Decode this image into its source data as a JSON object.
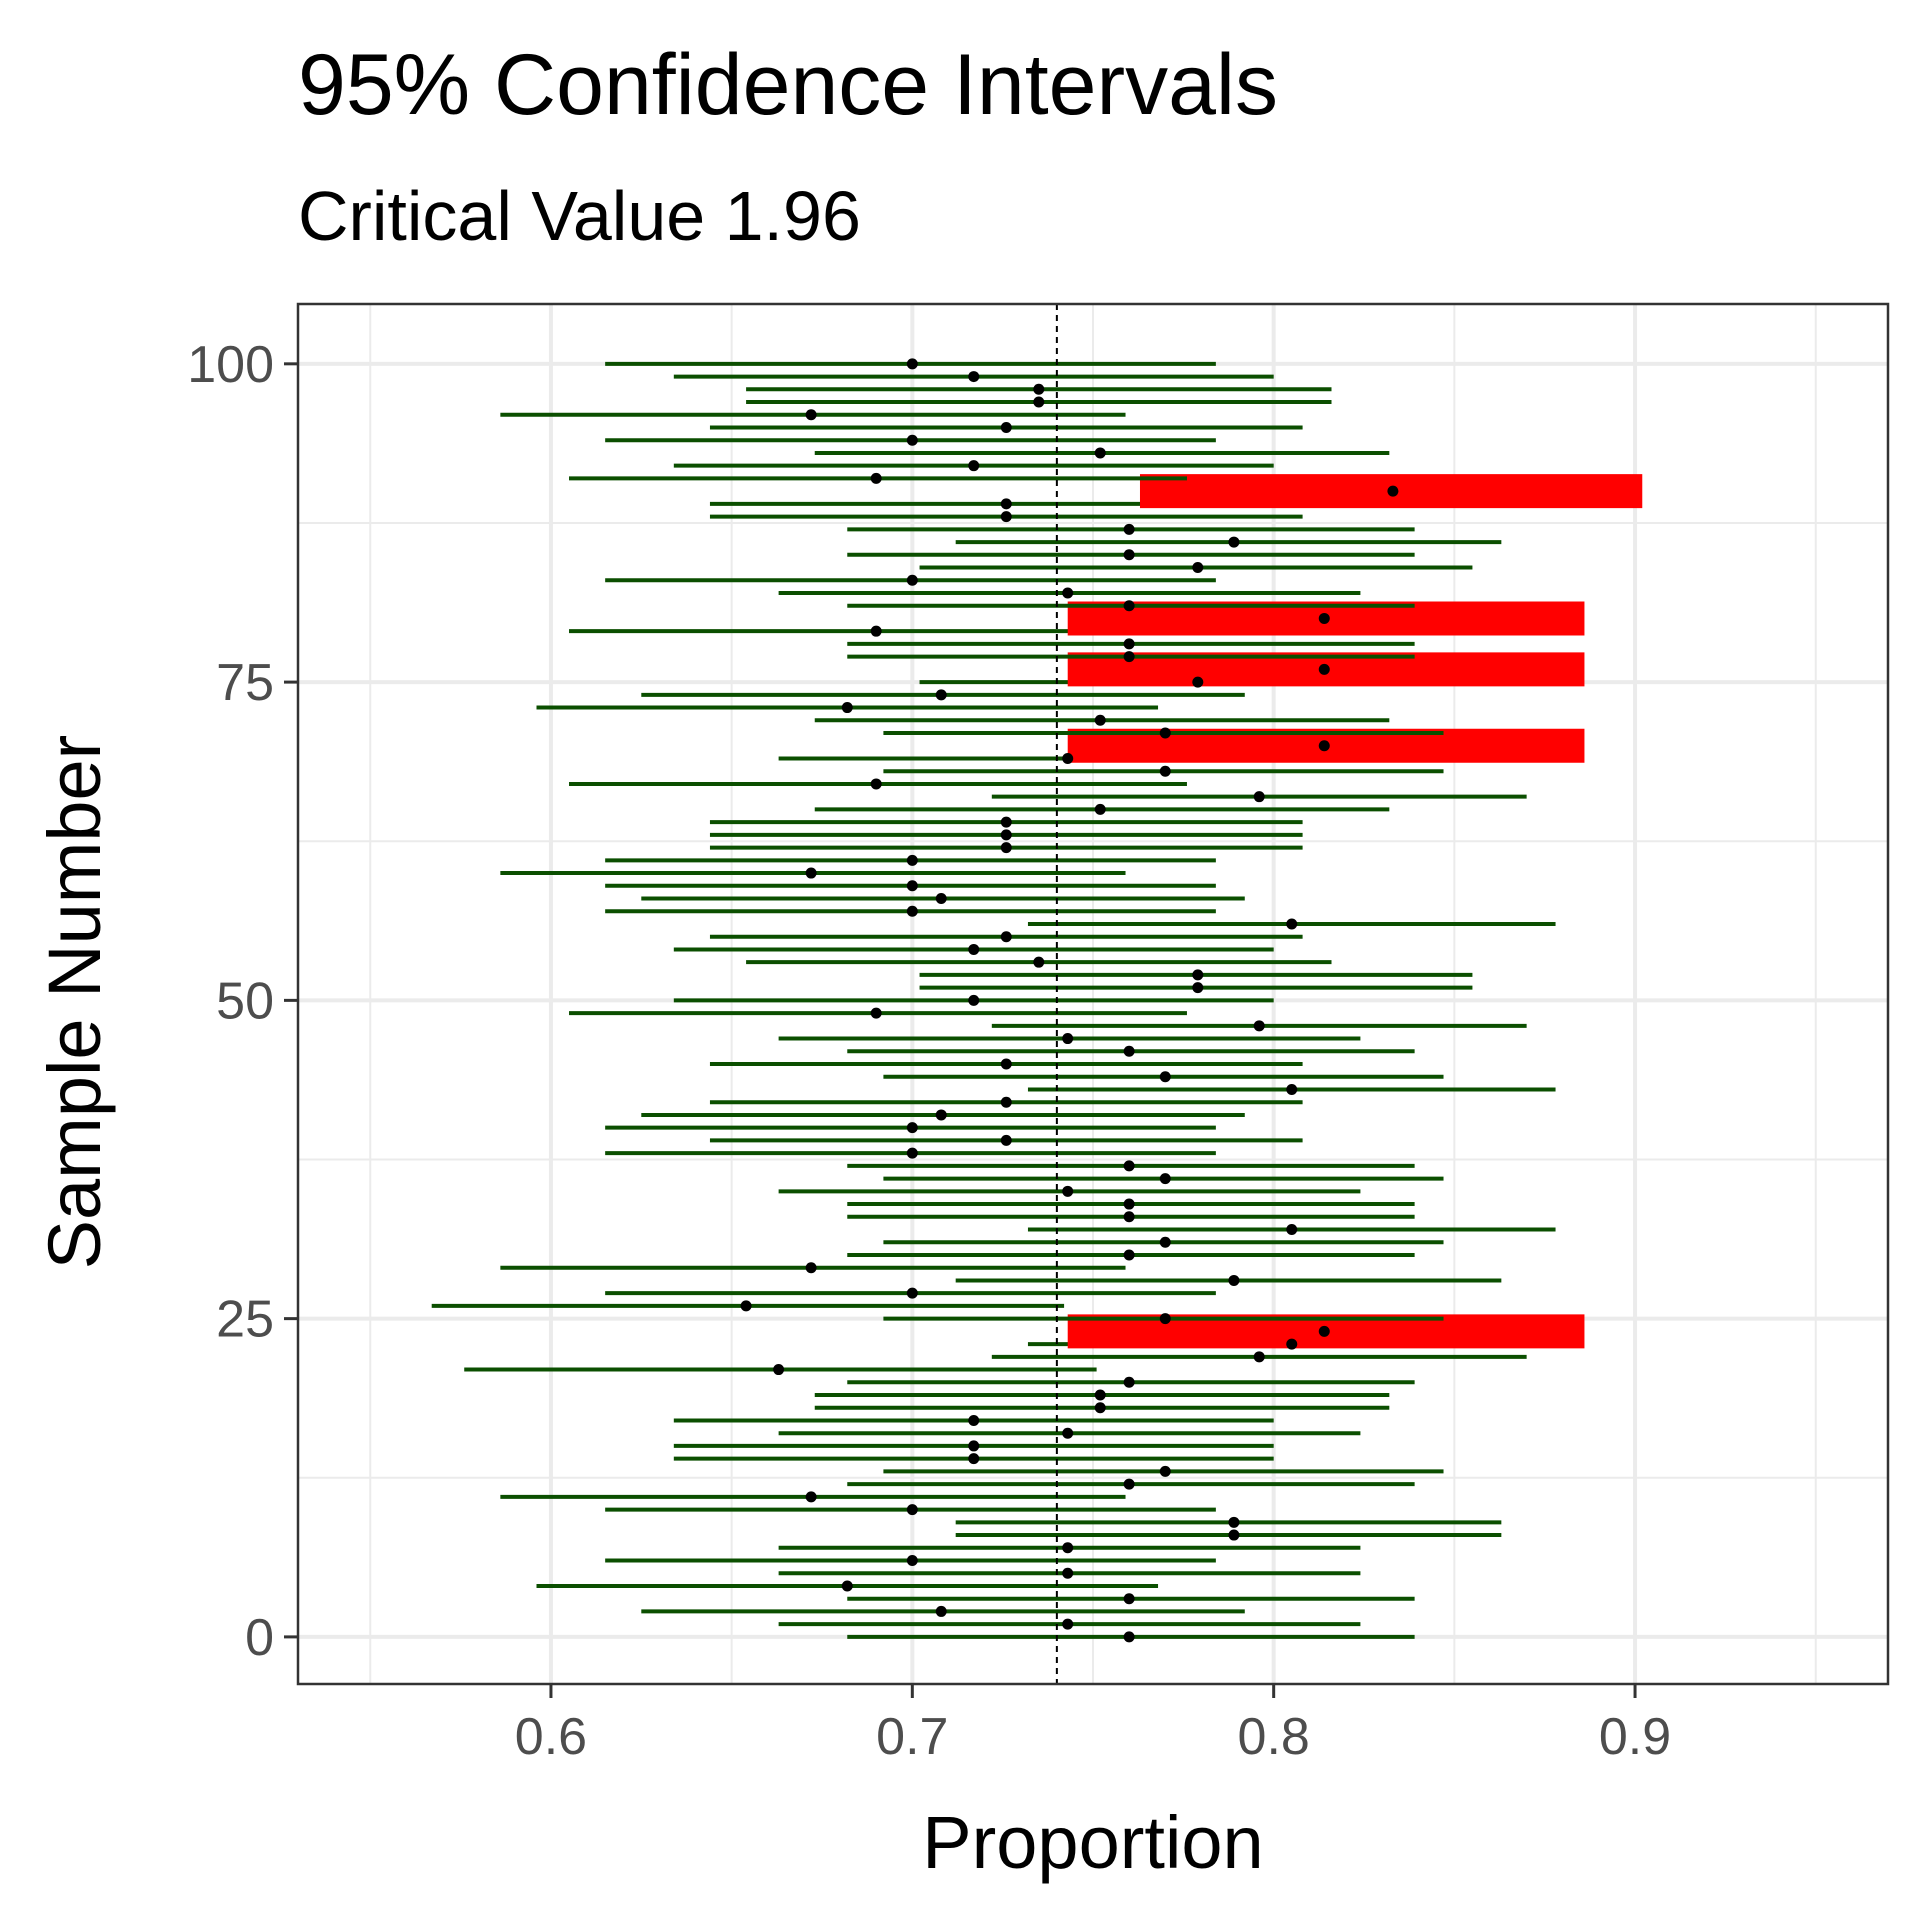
{
  "chart_data": {
    "type": "scatter",
    "title": "95% Confidence Intervals",
    "subtitle": "Critical Value 1.96",
    "xlabel": "Proportion",
    "ylabel": "Sample Number",
    "xlim": [
      0.53,
      0.97
    ],
    "ylim": [
      -3.7,
      104.7
    ],
    "x_ticks": [
      0.6,
      0.7,
      0.8,
      0.9
    ],
    "x_tick_labels": [
      "0.6",
      "0.7",
      "0.8",
      "0.9"
    ],
    "y_ticks": [
      0,
      25,
      50,
      75,
      100
    ],
    "y_tick_labels": [
      "0",
      "25",
      "50",
      "75",
      "100"
    ],
    "reference_line": 0.74,
    "grid": true,
    "colors": {
      "covered": "#0b4f00",
      "missed": "#ff0000",
      "point": "#000000",
      "grid": "#ebebeb",
      "reference": "#000000"
    },
    "series": [
      {
        "name": "sample proportion",
        "values": [
          0.76,
          0.743,
          0.708,
          0.76,
          0.682,
          0.743,
          0.7,
          0.743,
          0.789,
          0.789,
          0.7,
          0.672,
          0.76,
          0.77,
          0.717,
          0.717,
          0.743,
          0.717,
          0.752,
          0.752,
          0.76,
          0.663,
          0.796,
          0.805,
          0.814,
          0.77,
          0.654,
          0.7,
          0.789,
          0.672,
          0.76,
          0.77,
          0.805,
          0.76,
          0.76,
          0.743,
          0.77,
          0.76,
          0.7,
          0.726,
          0.7,
          0.708,
          0.726,
          0.805,
          0.77,
          0.726,
          0.76,
          0.743,
          0.796,
          0.69,
          0.717,
          0.779,
          0.779,
          0.735,
          0.717,
          0.726,
          0.805,
          0.7,
          0.708,
          0.7,
          0.672,
          0.7,
          0.726,
          0.726,
          0.726,
          0.752,
          0.796,
          0.69,
          0.77,
          0.743,
          0.814,
          0.77,
          0.752,
          0.682,
          0.708,
          0.779,
          0.814,
          0.76,
          0.76,
          0.69,
          0.814,
          0.76,
          0.743,
          0.7,
          0.779,
          0.76,
          0.789,
          0.76,
          0.726,
          0.726,
          0.833,
          0.69,
          0.717,
          0.752,
          0.7,
          0.726,
          0.672,
          0.735,
          0.735,
          0.717,
          0.7
        ]
      },
      {
        "name": "lower bound",
        "values": [
          0.682,
          0.663,
          0.625,
          0.682,
          0.596,
          0.663,
          0.615,
          0.663,
          0.712,
          0.712,
          0.615,
          0.586,
          0.682,
          0.692,
          0.634,
          0.634,
          0.663,
          0.634,
          0.673,
          0.673,
          0.682,
          0.576,
          0.722,
          0.732,
          0.743,
          0.692,
          0.567,
          0.615,
          0.712,
          0.586,
          0.682,
          0.692,
          0.732,
          0.682,
          0.682,
          0.663,
          0.692,
          0.682,
          0.615,
          0.644,
          0.615,
          0.625,
          0.644,
          0.732,
          0.692,
          0.644,
          0.682,
          0.663,
          0.722,
          0.605,
          0.634,
          0.702,
          0.702,
          0.654,
          0.634,
          0.644,
          0.732,
          0.615,
          0.625,
          0.615,
          0.586,
          0.615,
          0.644,
          0.644,
          0.644,
          0.673,
          0.722,
          0.605,
          0.692,
          0.663,
          0.743,
          0.692,
          0.673,
          0.596,
          0.625,
          0.702,
          0.743,
          0.682,
          0.682,
          0.605,
          0.743,
          0.682,
          0.663,
          0.615,
          0.702,
          0.682,
          0.712,
          0.682,
          0.644,
          0.644,
          0.763,
          0.605,
          0.634,
          0.673,
          0.615,
          0.644,
          0.586,
          0.654,
          0.654,
          0.634,
          0.615
        ]
      },
      {
        "name": "upper bound",
        "values": [
          0.839,
          0.824,
          0.792,
          0.839,
          0.768,
          0.824,
          0.784,
          0.824,
          0.863,
          0.863,
          0.784,
          0.759,
          0.839,
          0.847,
          0.8,
          0.8,
          0.824,
          0.8,
          0.832,
          0.832,
          0.839,
          0.751,
          0.87,
          0.878,
          0.886,
          0.847,
          0.742,
          0.784,
          0.863,
          0.759,
          0.839,
          0.847,
          0.878,
          0.839,
          0.839,
          0.824,
          0.847,
          0.839,
          0.784,
          0.808,
          0.784,
          0.792,
          0.808,
          0.878,
          0.847,
          0.808,
          0.839,
          0.824,
          0.87,
          0.776,
          0.8,
          0.855,
          0.855,
          0.816,
          0.8,
          0.808,
          0.878,
          0.784,
          0.792,
          0.784,
          0.759,
          0.784,
          0.808,
          0.808,
          0.808,
          0.832,
          0.87,
          0.776,
          0.847,
          0.824,
          0.886,
          0.847,
          0.832,
          0.768,
          0.792,
          0.855,
          0.886,
          0.839,
          0.839,
          0.776,
          0.886,
          0.839,
          0.824,
          0.784,
          0.855,
          0.839,
          0.863,
          0.839,
          0.808,
          0.808,
          0.902,
          0.776,
          0.8,
          0.832,
          0.784,
          0.808,
          0.759,
          0.816,
          0.816,
          0.8,
          0.784
        ]
      }
    ]
  }
}
